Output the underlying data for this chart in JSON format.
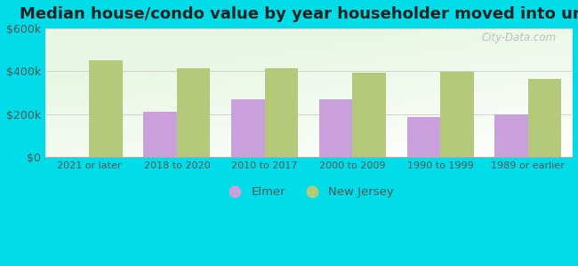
{
  "title": "Median house/condo value by year householder moved into unit",
  "categories": [
    "2021 or later",
    "2018 to 2020",
    "2010 to 2017",
    "2000 to 2009",
    "1990 to 1999",
    "1989 or earlier"
  ],
  "elmer_values": [
    null,
    210000,
    270000,
    270000,
    185000,
    200000
  ],
  "nj_values": [
    450000,
    415000,
    415000,
    395000,
    398000,
    365000
  ],
  "elmer_color": "#c9a0dc",
  "nj_color": "#b5c97a",
  "ylim": [
    0,
    600000
  ],
  "yticks": [
    0,
    200000,
    400000,
    600000
  ],
  "ytick_labels": [
    "$0",
    "$200k",
    "$400k",
    "$600k"
  ],
  "legend_elmer": "Elmer",
  "legend_nj": "New Jersey",
  "bar_width": 0.38,
  "title_fontsize": 13,
  "outer_bg": "#00dde8",
  "watermark": "City-Data.com"
}
